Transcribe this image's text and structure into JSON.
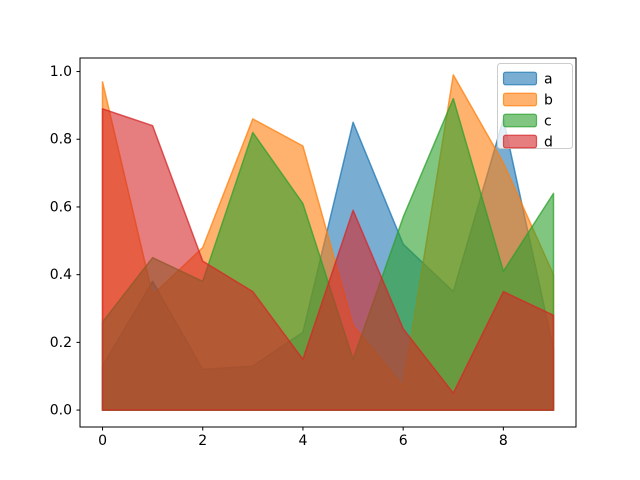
{
  "figure": {
    "background": "#ffffff",
    "kind": "matplotlib-area-plot"
  },
  "chart_data": {
    "type": "area",
    "title": "",
    "xlabel": "",
    "ylabel": "",
    "x": [
      0,
      1,
      2,
      3,
      4,
      5,
      6,
      7,
      8,
      9
    ],
    "series": [
      {
        "name": "a",
        "color": "#1f77b4",
        "values": [
          0.13,
          0.38,
          0.12,
          0.13,
          0.23,
          0.85,
          0.49,
          0.35,
          0.86,
          0.18
        ]
      },
      {
        "name": "b",
        "color": "#ff7f0e",
        "values": [
          0.97,
          0.34,
          0.48,
          0.86,
          0.78,
          0.25,
          0.07,
          0.99,
          0.73,
          0.4
        ]
      },
      {
        "name": "c",
        "color": "#2ca02c",
        "values": [
          0.26,
          0.45,
          0.38,
          0.82,
          0.61,
          0.15,
          0.57,
          0.92,
          0.41,
          0.64
        ]
      },
      {
        "name": "d",
        "color": "#d62728",
        "values": [
          0.89,
          0.84,
          0.44,
          0.35,
          0.15,
          0.59,
          0.24,
          0.05,
          0.35,
          0.28
        ]
      }
    ],
    "baseline": 0,
    "fill_alpha": 0.6,
    "line_alpha": 0.75,
    "xlim": [
      -0.45,
      9.45
    ],
    "ylim": [
      -0.05,
      1.04
    ],
    "x_ticks": [
      {
        "value": 0,
        "label": "0"
      },
      {
        "value": 2,
        "label": "2"
      },
      {
        "value": 4,
        "label": "4"
      },
      {
        "value": 6,
        "label": "6"
      },
      {
        "value": 8,
        "label": "8"
      }
    ],
    "y_ticks": [
      {
        "value": 0.0,
        "label": "0.0"
      },
      {
        "value": 0.2,
        "label": "0.2"
      },
      {
        "value": 0.4,
        "label": "0.4"
      },
      {
        "value": 0.6,
        "label": "0.6"
      },
      {
        "value": 0.8,
        "label": "0.8"
      },
      {
        "value": 1.0,
        "label": "1.0"
      }
    ],
    "grid": false,
    "legend": {
      "position": "upper right",
      "border_color": "#cccccc",
      "background": "#ffffff",
      "entries": [
        "a",
        "b",
        "c",
        "d"
      ]
    }
  }
}
